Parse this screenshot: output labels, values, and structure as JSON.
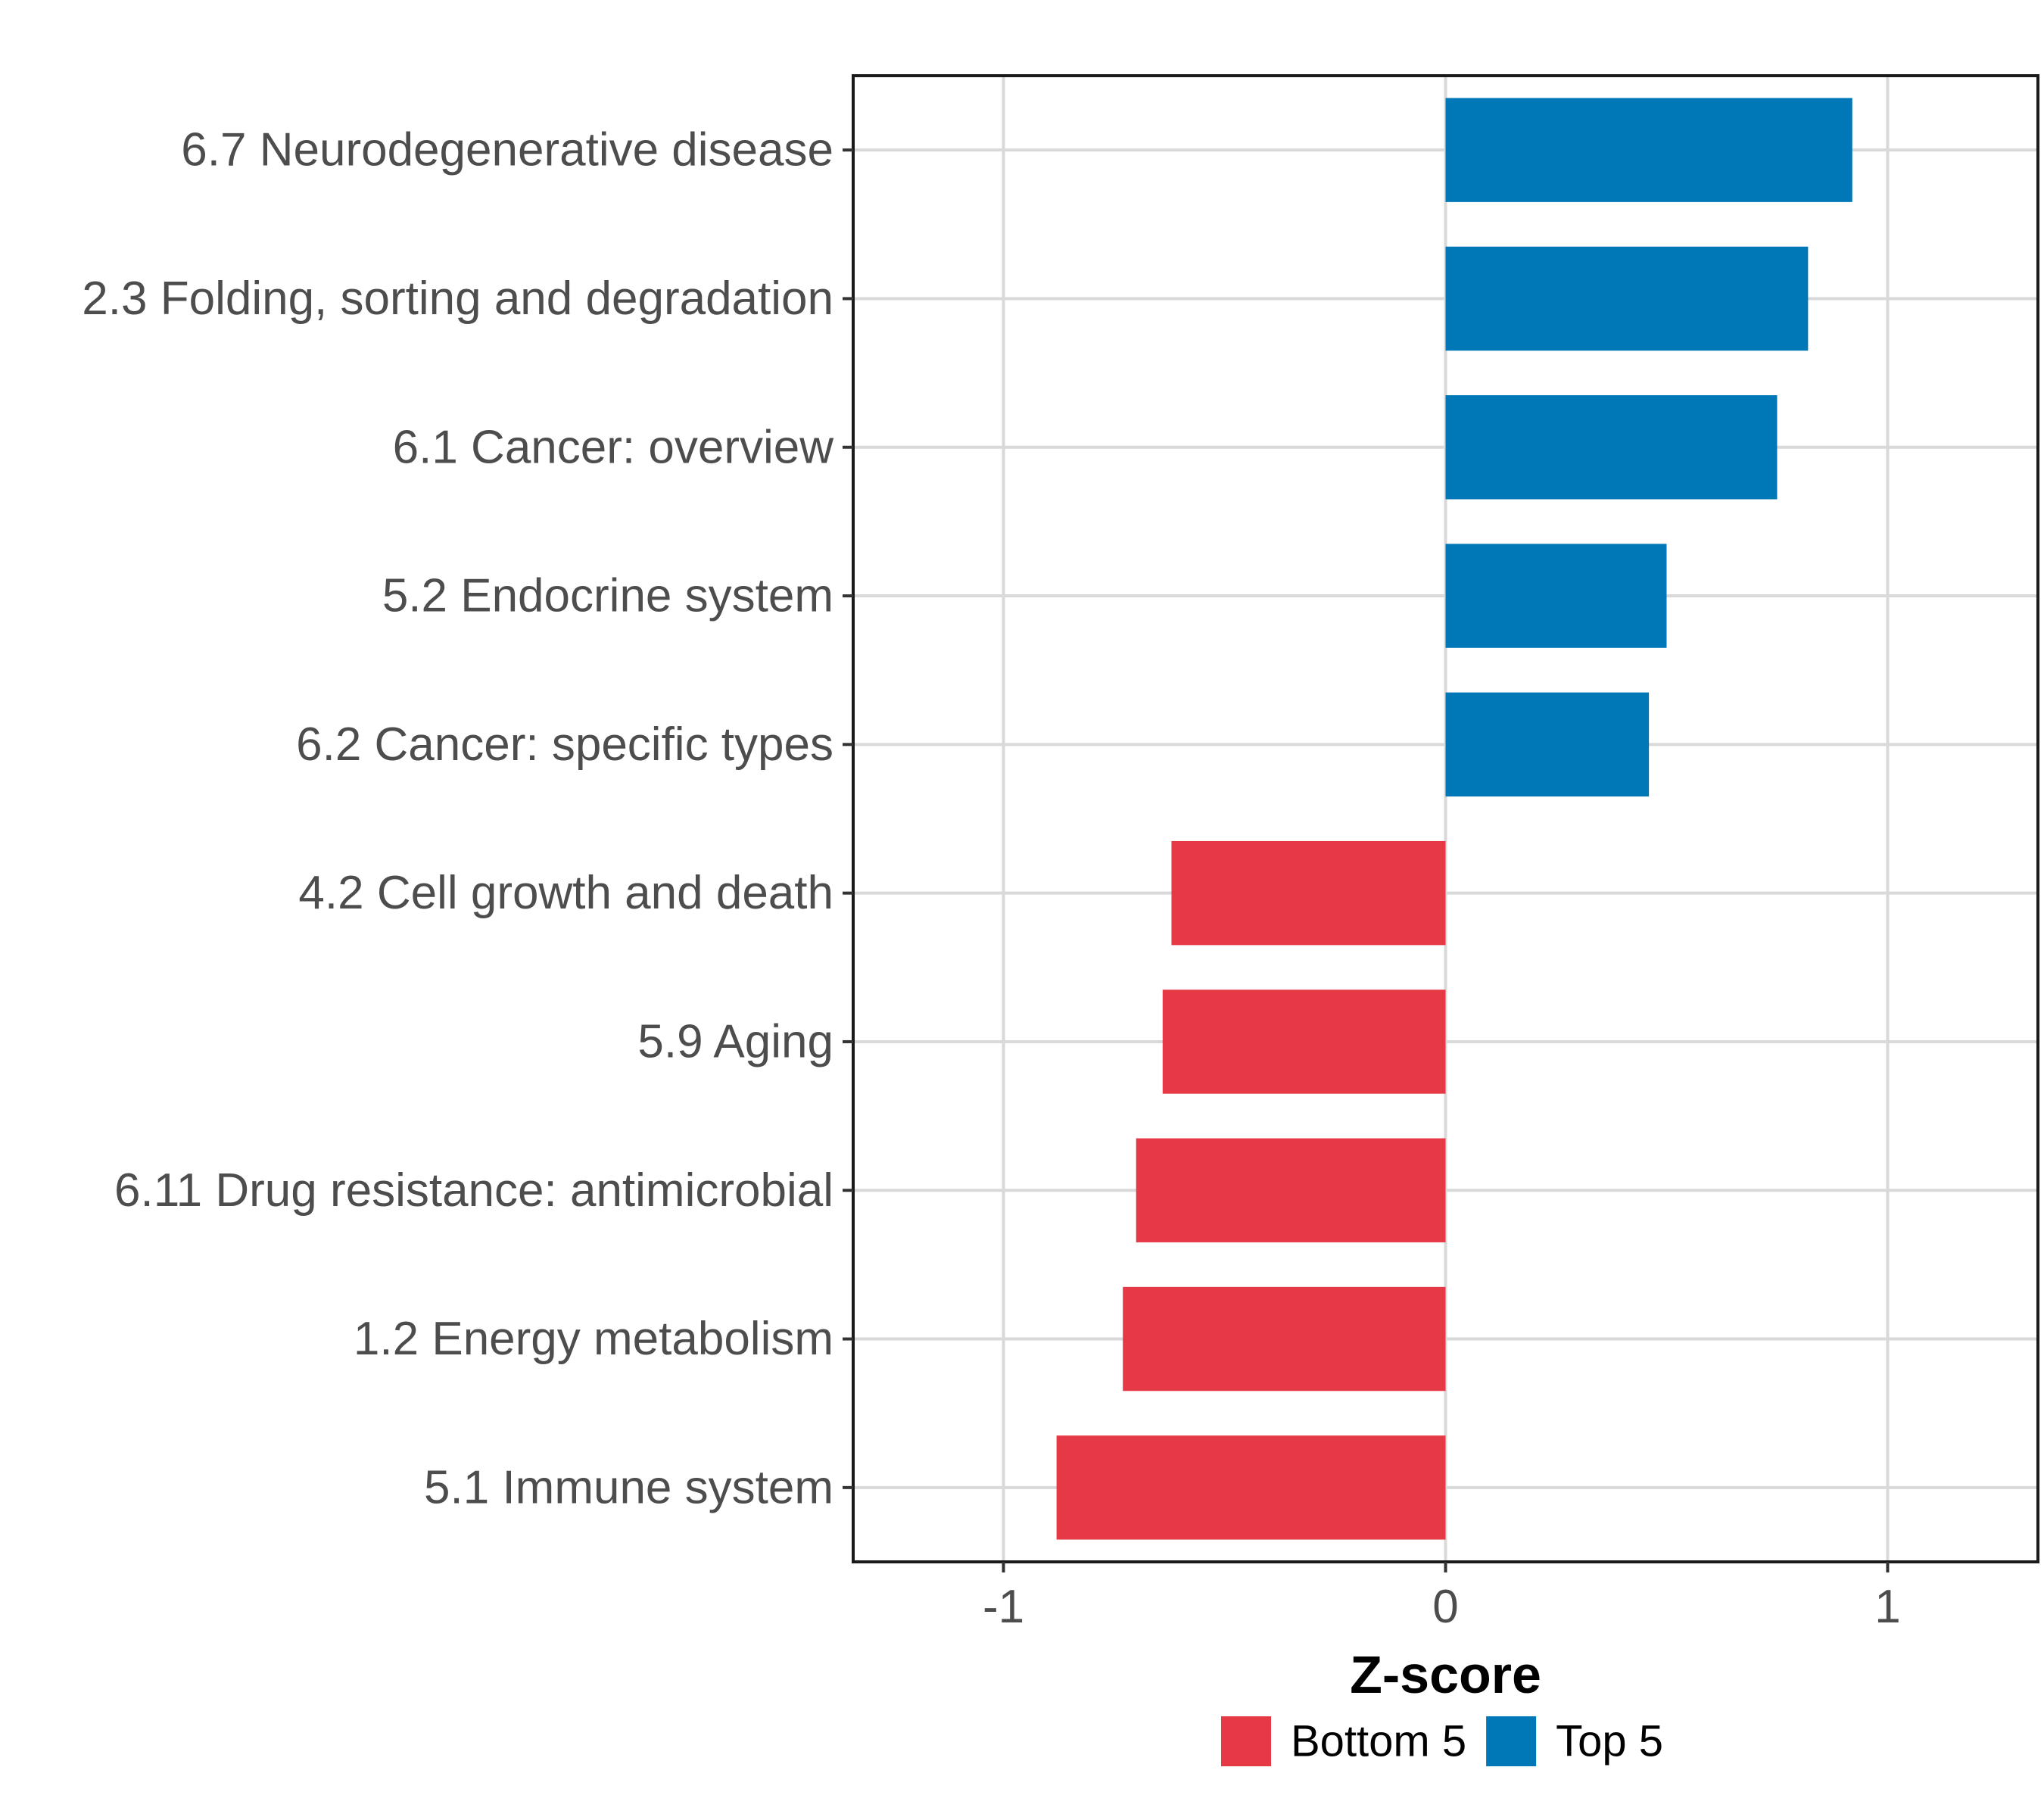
{
  "chart_data": {
    "type": "bar",
    "orientation": "horizontal",
    "categories": [
      "6.7 Neurodegenerative disease",
      "2.3 Folding, sorting and degradation",
      "6.1 Cancer: overview",
      "5.2 Endocrine system",
      "6.2 Cancer: specific types",
      "4.2 Cell growth and death",
      "5.9 Aging",
      "6.11 Drug resistance: antimicrobial",
      "1.2 Energy metabolism",
      "5.1 Immune system"
    ],
    "values": [
      0.92,
      0.82,
      0.75,
      0.5,
      0.46,
      -0.62,
      -0.64,
      -0.7,
      -0.73,
      -0.88
    ],
    "groups": [
      "Top 5",
      "Top 5",
      "Top 5",
      "Top 5",
      "Top 5",
      "Bottom 5",
      "Bottom 5",
      "Bottom 5",
      "Bottom 5",
      "Bottom 5"
    ],
    "xlabel": "Z-score",
    "ylabel": "",
    "xlim": [
      -1.34,
      1.34
    ],
    "xticks": [
      -1,
      0,
      1
    ],
    "xtick_labels": [
      "-1",
      "0",
      "1"
    ],
    "grid": true,
    "legend": {
      "placement": "bottom",
      "entries": [
        {
          "label": "Bottom 5",
          "color": "#e63946"
        },
        {
          "label": "Top 5",
          "color": "#0077b6"
        }
      ]
    }
  }
}
